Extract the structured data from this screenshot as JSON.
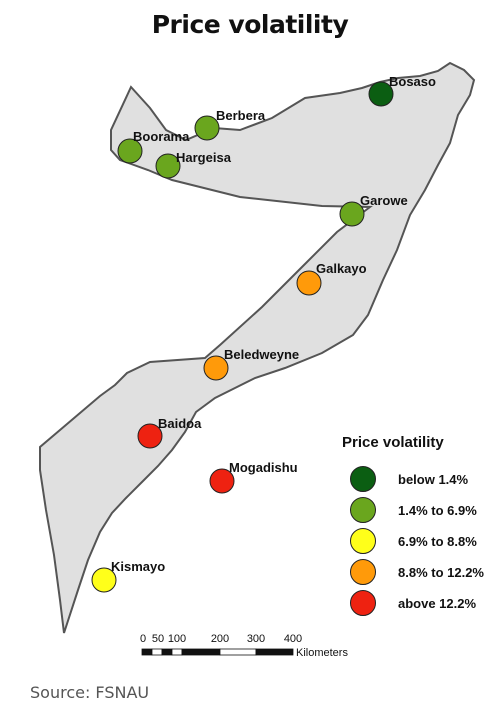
{
  "title": "Price volatility",
  "source": "Source: FSNAU",
  "legend": {
    "title": "Price volatility",
    "items": [
      {
        "label": "below 1.4%",
        "color": "#0b5e12"
      },
      {
        "label": "1.4% to 6.9%",
        "color": "#6aa61e"
      },
      {
        "label": "6.9% to 8.8%",
        "color": "#ffff1a"
      },
      {
        "label": "8.8% to 12.2%",
        "color": "#ff9a0a"
      },
      {
        "label": "above 12.2%",
        "color": "#ee2211"
      }
    ]
  },
  "cities": [
    {
      "name": "Bosaso",
      "category": 0
    },
    {
      "name": "Berbera",
      "category": 1
    },
    {
      "name": "Boorama",
      "category": 1
    },
    {
      "name": "Hargeisa",
      "category": 1
    },
    {
      "name": "Garowe",
      "category": 1
    },
    {
      "name": "Galkayo",
      "category": 3
    },
    {
      "name": "Beledweyne",
      "category": 3
    },
    {
      "name": "Baidoa",
      "category": 4
    },
    {
      "name": "Mogadishu",
      "category": 4
    },
    {
      "name": "Kismayo",
      "category": 2
    }
  ],
  "scale_bar": {
    "ticks": [
      "0",
      "50",
      "100",
      "200",
      "300",
      "400"
    ],
    "unit": "Kilometers"
  },
  "map_colors": {
    "land": "#e0e0e0",
    "border": "#555555"
  }
}
